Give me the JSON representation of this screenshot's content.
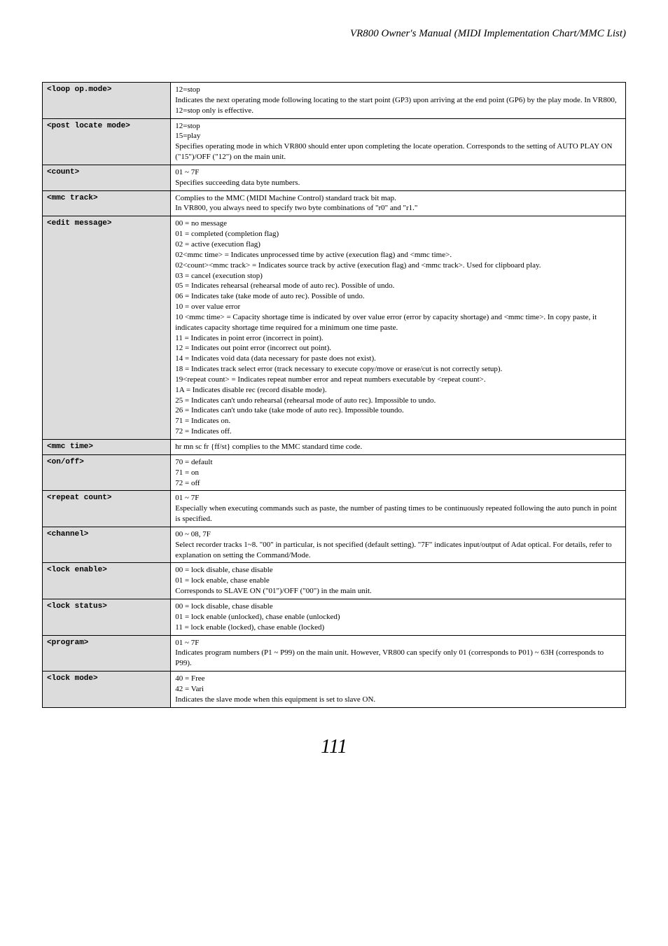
{
  "header": {
    "title": "VR800 Owner's Manual (MIDI Implementation Chart/MMC List)"
  },
  "rows": [
    {
      "label": "<loop op.mode>",
      "lines": [
        "12=stop",
        "Indicates the next operating mode following locating to the start point (GP3) upon arriving at the end point (GP6) by the play mode.  In VR800, 12=stop only is effective."
      ]
    },
    {
      "label": "<post locate mode>",
      "lines": [
        "12=stop",
        "15=play",
        "Specifies operating mode in which VR800 should enter upon completing the  locate operation.  Corresponds to the setting of AUTO PLAY ON (\"15\")/OFF (\"12\") on the main unit."
      ]
    },
    {
      "label": "<count>",
      "lines": [
        "01 ~ 7F",
        "Specifies succeeding data byte numbers."
      ]
    },
    {
      "label": "<mmc track>",
      "lines": [
        "Complies to the MMC (MIDI Machine Control) standard track bit map.",
        "In VR800, you always need to specify two byte combinations of \"r0\" and \"r1.\""
      ]
    },
    {
      "label": "<edit message>",
      "lines": [
        "00 = no message",
        "01 = completed (completion flag)",
        "02 = active (execution flag)",
        "02<mmc time> = Indicates unprocessed time by active (execution flag) and <mmc time>.",
        "02<count><mmc track> = Indicates source track by active (execution flag) and <mmc track>.  Used for clipboard play.",
        "03 = cancel (execution stop)",
        "05 = Indicates rehearsal (rehearsal mode of auto rec).  Possible of undo.",
        "06 = Indicates take (take mode of auto rec).  Possible of undo.",
        "10 = over value error",
        "10 <mmc time> = Capacity shortage time is indicated by over value error (error by capacity shortage) and <mmc time>.  In copy paste, it indicates capacity shortage time required for a minimum one time paste.",
        "11 = Indicates in point error (incorrect in point).",
        "12 = Indicates out point error (incorrect out point).",
        "14 = Indicates void data (data necessary for paste does not exist).",
        "18 = Indicates track select error (track necessary to execute copy/move or erase/cut  is not correctly setup).",
        "19<repeat count> = Indicates repeat number error and repeat numbers executable by <repeat count>.",
        "1A = Indicates disable rec (record disable mode).",
        "25 = Indicates can't undo rehearsal (rehearsal mode of auto rec).  Impossible to undo.",
        "26 = Indicates can't undo take (take mode of auto rec).  Impossible toundo.",
        "71 = Indicates on.",
        "72 = Indicates off."
      ]
    },
    {
      "label": "<mmc time>",
      "lines": [
        "hr mn sc fr {ff/st} complies to the MMC standard time code."
      ]
    },
    {
      "label": "<on/off>",
      "lines": [
        "70 = default",
        "71 = on",
        "72 = off"
      ]
    },
    {
      "label": "<repeat count>",
      "lines": [
        "01 ~ 7F",
        "Especially when executing commands such as paste, the number of pasting times to be continuously repeated following the auto punch in point is specified."
      ]
    },
    {
      "label": "<channel>",
      "lines": [
        "00 ~ 08, 7F",
        "Select recorder tracks 1~8. \"00\" in particular, is not specified (default setting). \"7F\" indicates input/output of Adat optical. For details, refer to explanation on setting the Command/Mode."
      ]
    },
    {
      "label": "<lock enable>",
      "lines": [
        "00 = lock disable, chase disable",
        "01 = lock enable, chase enable",
        "Corresponds to SLAVE ON (\"01\")/OFF (\"00\") in the main unit."
      ]
    },
    {
      "label": "<lock status>",
      "lines": [
        "00 = lock disable, chase disable",
        "01 = lock enable (unlocked), chase enable (unlocked)",
        "11 = lock enable (locked), chase enable (locked)"
      ]
    },
    {
      "label": "<program>",
      "lines": [
        "01 ~ 7F",
        "Indicates program numbers (P1 ~ P99) on the main unit. However, VR800 can specify only 01 (corresponds to P01) ~ 63H (corresponds to P99)."
      ]
    },
    {
      "label": "<lock mode>",
      "lines": [
        "40 = Free",
        "42 = Vari",
        "Indicates the slave mode when this equipment is set to slave ON."
      ]
    }
  ],
  "pageNumber": "111"
}
